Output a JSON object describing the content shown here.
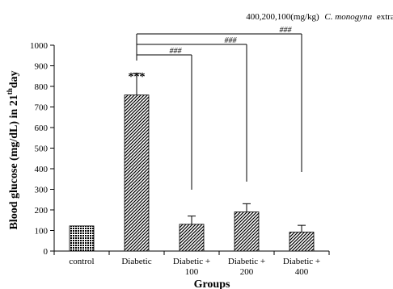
{
  "chart_data": {
    "type": "bar",
    "top_note": {
      "prefix": "400,200,100(mg/kg)",
      "italic": "C. monogyna",
      "suffix": "extract"
    },
    "xlabel": "Groups",
    "ylabel": {
      "before": "Blood glucose (mg/dL) in 21",
      "sup": "th",
      "after": "day"
    },
    "ylim": [
      0,
      1000
    ],
    "yticks": [
      "0",
      "100",
      "200",
      "300",
      "400",
      "500",
      "600",
      "700",
      "800",
      "900",
      "1000"
    ],
    "categories": [
      {
        "line1": "control",
        "line2": ""
      },
      {
        "line1": "Diabetic",
        "line2": ""
      },
      {
        "line1": "Diabetic +",
        "line2": "100"
      },
      {
        "line1": "Diabetic +",
        "line2": "200"
      },
      {
        "line1": "Diabetic +",
        "line2": "400"
      }
    ],
    "values": [
      122,
      758,
      130,
      190,
      92
    ],
    "errors": [
      0,
      105,
      40,
      40,
      33
    ],
    "patterns": [
      "dots",
      "diag",
      "diag",
      "diag",
      "diag"
    ],
    "annotations": [
      {
        "category_index": 1,
        "text": "***"
      }
    ],
    "comparisons": [
      {
        "from": 1,
        "to": 2,
        "text": "###"
      },
      {
        "from": 1,
        "to": 3,
        "text": "###"
      },
      {
        "from": 1,
        "to": 4,
        "text": "###"
      }
    ],
    "grid": false,
    "legend": "none"
  }
}
